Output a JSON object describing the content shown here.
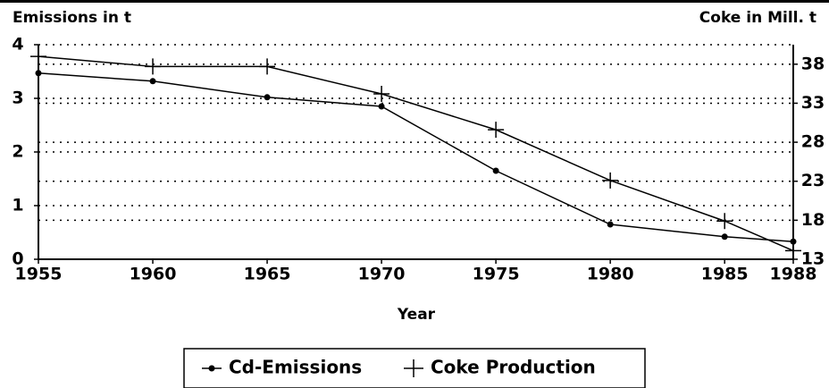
{
  "chart_data": {
    "type": "line",
    "y_label": "Emissions in t",
    "y2_label": "Coke in Mill. t",
    "x_label": "Year",
    "x": [
      1955,
      1960,
      1965,
      1970,
      1975,
      1980,
      1985,
      1988
    ],
    "xlim": [
      1955,
      1988
    ],
    "xticks": [
      1955,
      1960,
      1965,
      1970,
      1975,
      1980,
      1985,
      1988
    ],
    "ylim": [
      0,
      4
    ],
    "yticks": [
      0,
      1,
      2,
      3,
      4
    ],
    "y2lim": [
      13,
      40.5
    ],
    "y2ticks": [
      13,
      18,
      23,
      28,
      33,
      38
    ],
    "grid": true,
    "legend": "bottom",
    "series": [
      {
        "name": "Cd-Emissions",
        "color": "#000000",
        "marker": "dot",
        "values": [
          3.47,
          3.32,
          3.02,
          2.85,
          1.65,
          0.65,
          0.42,
          0.33
        ]
      },
      {
        "name": "Coke Production",
        "color": "#000000",
        "marker": "plus",
        "axis": "y2",
        "values": [
          39.0,
          37.7,
          37.7,
          34.2,
          29.6,
          23.1,
          17.9,
          14.1
        ]
      }
    ]
  }
}
